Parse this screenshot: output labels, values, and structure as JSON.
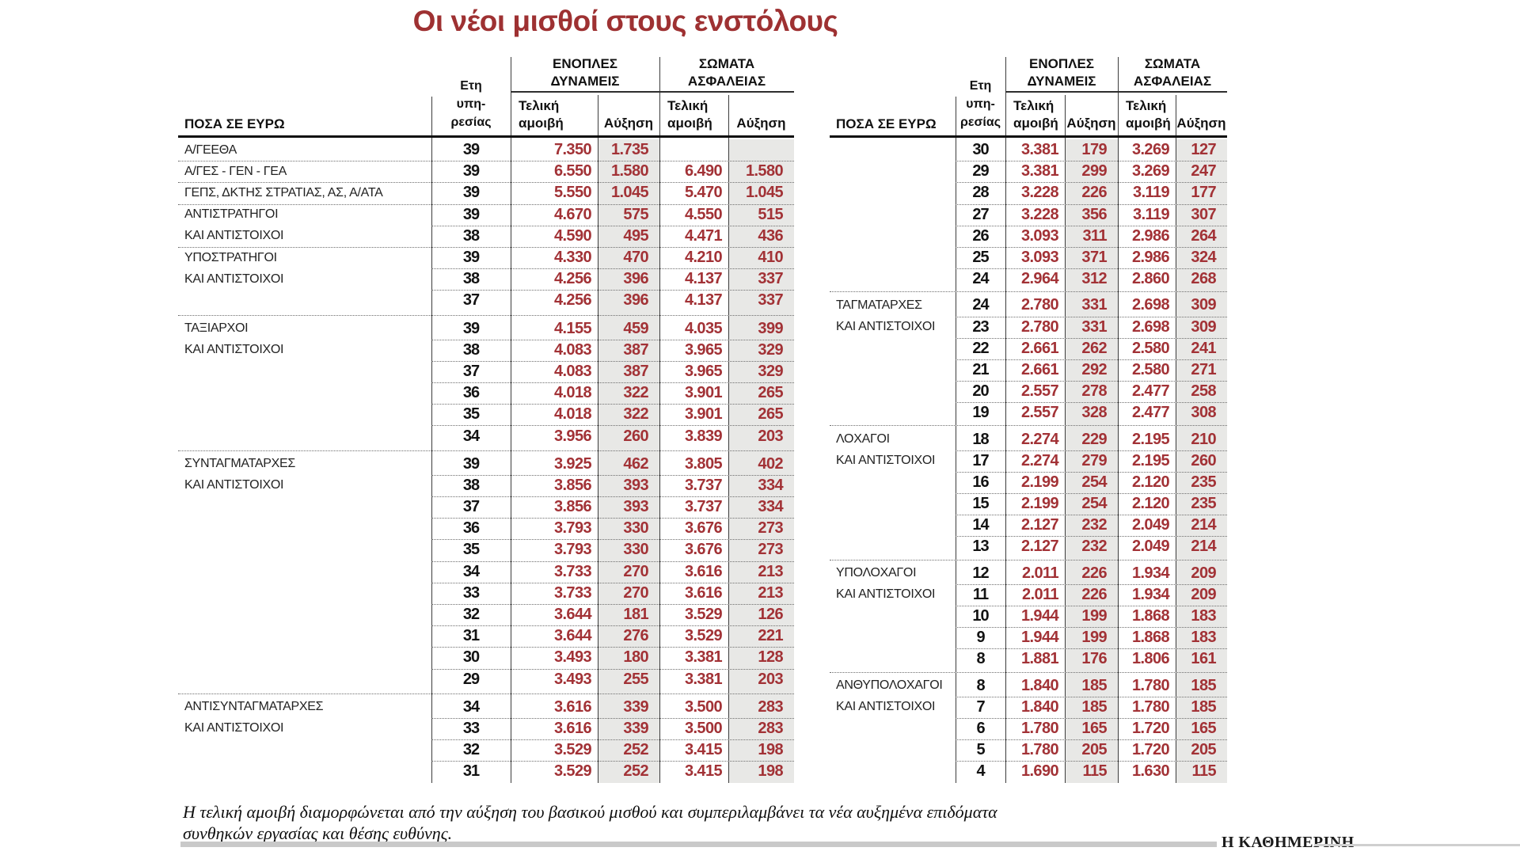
{
  "colors": {
    "accent": "#9e3132",
    "number": "#a23236",
    "shade": "#e8e8e6"
  },
  "headers": {
    "amounts": "ΠΟΣΑ ΣΕ ΕΥΡΩ",
    "years1": "Ετη",
    "years2": "υπη-",
    "years3": "ρεσίας",
    "group1a": "ΕΝΟΠΛΕΣ",
    "group1b": "ΔΥΝΑΜΕΙΣ",
    "group2a": "ΣΩΜΑΤΑ",
    "group2b": "ΑΣΦΑΛΕΙΑΣ",
    "pay1": "Τελική",
    "pay2": "αμοιβή",
    "increase": "Αύξηση"
  },
  "footnote": {
    "line1": "Η τελική αμοιβή διαμορφώνεται από την αύξηση του βασικού μισθού και συμπεριλαμβάνει τα νέα αυξημένα επιδόματα",
    "line2": "συνθηκών εργασίας και θέσης ευθύνης."
  },
  "source": "Η ΚΑΘΗΜΕΡΙΝΗ",
  "chart_data": {
    "type": "table",
    "title": "Οι νέοι μισθοί στους ενστόλους",
    "column_groups": [
      "ΕΝΟΠΛΕΣ ΔΥΝΑΜΕΙΣ",
      "ΣΩΜΑΤΑ ΑΣΦΑΛΕΙΑΣ"
    ],
    "columns": [
      "ΠΟΣΑ ΣΕ ΕΥΡΩ",
      "Ετη υπηρεσίας",
      "Τελική αμοιβή",
      "Αύξηση",
      "Τελική αμοιβή",
      "Αύξηση"
    ],
    "tables": [
      {
        "rows": [
          {
            "label": "Α/ΓΕΕΘΑ",
            "years": "39",
            "ed_pay": "7.350",
            "ed_inc": "1.735",
            "sa_pay": "",
            "sa_inc": "",
            "sep": "none"
          },
          {
            "label": "Α/ΓΕΣ - ΓΕΝ - ΓΕΑ",
            "years": "39",
            "ed_pay": "6.550",
            "ed_inc": "1.580",
            "sa_pay": "6.490",
            "sa_inc": "1.580",
            "sep": "full"
          },
          {
            "label": "ΓΕΠΣ, ΔΚΤΗΣ ΣΤΡΑΤΙΑΣ, ΑΣ, Α/ΑΤΑ",
            "years": "39",
            "ed_pay": "5.550",
            "ed_inc": "1.045",
            "sa_pay": "5.470",
            "sa_inc": "1.045",
            "sep": "full"
          },
          {
            "label": "ΑΝΤΙΣΤΡΑΤΗΓΟΙ",
            "years": "39",
            "ed_pay": "4.670",
            "ed_inc": "575",
            "sa_pay": "4.550",
            "sa_inc": "515",
            "sep": "full"
          },
          {
            "label": "ΚΑΙ ΑΝΤΙΣΤΟΙΧΟΙ",
            "years": "38",
            "ed_pay": "4.590",
            "ed_inc": "495",
            "sa_pay": "4.471",
            "sa_inc": "436",
            "sep": "row"
          },
          {
            "label": "ΥΠΟΣΤΡΑΤΗΓΟΙ",
            "years": "39",
            "ed_pay": "4.330",
            "ed_inc": "470",
            "sa_pay": "4.210",
            "sa_inc": "410",
            "sep": "full"
          },
          {
            "label": "ΚΑΙ ΑΝΤΙΣΤΟΙΧΟΙ",
            "years": "38",
            "ed_pay": "4.256",
            "ed_inc": "396",
            "sa_pay": "4.137",
            "sa_inc": "337",
            "sep": "row"
          },
          {
            "label": "",
            "years": "37",
            "ed_pay": "4.256",
            "ed_inc": "396",
            "sa_pay": "4.137",
            "sa_inc": "337",
            "sep": "row"
          },
          {
            "label": "ΤΑΞΙΑΡΧΟΙ",
            "years": "39",
            "ed_pay": "4.155",
            "ed_inc": "459",
            "sa_pay": "4.035",
            "sa_inc": "399",
            "sep": "gap"
          },
          {
            "label": "ΚΑΙ ΑΝΤΙΣΤΟΙΧΟΙ",
            "years": "38",
            "ed_pay": "4.083",
            "ed_inc": "387",
            "sa_pay": "3.965",
            "sa_inc": "329",
            "sep": "row"
          },
          {
            "label": "",
            "years": "37",
            "ed_pay": "4.083",
            "ed_inc": "387",
            "sa_pay": "3.965",
            "sa_inc": "329",
            "sep": "row"
          },
          {
            "label": "",
            "years": "36",
            "ed_pay": "4.018",
            "ed_inc": "322",
            "sa_pay": "3.901",
            "sa_inc": "265",
            "sep": "row"
          },
          {
            "label": "",
            "years": "35",
            "ed_pay": "4.018",
            "ed_inc": "322",
            "sa_pay": "3.901",
            "sa_inc": "265",
            "sep": "row"
          },
          {
            "label": "",
            "years": "34",
            "ed_pay": "3.956",
            "ed_inc": "260",
            "sa_pay": "3.839",
            "sa_inc": "203",
            "sep": "row"
          },
          {
            "label": "ΣΥΝΤΑΓΜΑΤΑΡΧΕΣ",
            "years": "39",
            "ed_pay": "3.925",
            "ed_inc": "462",
            "sa_pay": "3.805",
            "sa_inc": "402",
            "sep": "gap"
          },
          {
            "label": "ΚΑΙ ΑΝΤΙΣΤΟΙΧΟΙ",
            "years": "38",
            "ed_pay": "3.856",
            "ed_inc": "393",
            "sa_pay": "3.737",
            "sa_inc": "334",
            "sep": "row"
          },
          {
            "label": "",
            "years": "37",
            "ed_pay": "3.856",
            "ed_inc": "393",
            "sa_pay": "3.737",
            "sa_inc": "334",
            "sep": "row"
          },
          {
            "label": "",
            "years": "36",
            "ed_pay": "3.793",
            "ed_inc": "330",
            "sa_pay": "3.676",
            "sa_inc": "273",
            "sep": "row"
          },
          {
            "label": "",
            "years": "35",
            "ed_pay": "3.793",
            "ed_inc": "330",
            "sa_pay": "3.676",
            "sa_inc": "273",
            "sep": "row"
          },
          {
            "label": "",
            "years": "34",
            "ed_pay": "3.733",
            "ed_inc": "270",
            "sa_pay": "3.616",
            "sa_inc": "213",
            "sep": "row"
          },
          {
            "label": "",
            "years": "33",
            "ed_pay": "3.733",
            "ed_inc": "270",
            "sa_pay": "3.616",
            "sa_inc": "213",
            "sep": "row"
          },
          {
            "label": "",
            "years": "32",
            "ed_pay": "3.644",
            "ed_inc": "181",
            "sa_pay": "3.529",
            "sa_inc": "126",
            "sep": "row"
          },
          {
            "label": "",
            "years": "31",
            "ed_pay": "3.644",
            "ed_inc": "276",
            "sa_pay": "3.529",
            "sa_inc": "221",
            "sep": "row"
          },
          {
            "label": "",
            "years": "30",
            "ed_pay": "3.493",
            "ed_inc": "180",
            "sa_pay": "3.381",
            "sa_inc": "128",
            "sep": "row"
          },
          {
            "label": "",
            "years": "29",
            "ed_pay": "3.493",
            "ed_inc": "255",
            "sa_pay": "3.381",
            "sa_inc": "203",
            "sep": "row"
          },
          {
            "label": "ΑΝΤΙΣΥΝΤΑΓΜΑΤΑΡΧΕΣ",
            "years": "34",
            "ed_pay": "3.616",
            "ed_inc": "339",
            "sa_pay": "3.500",
            "sa_inc": "283",
            "sep": "gap"
          },
          {
            "label": "ΚΑΙ ΑΝΤΙΣΤΟΙΧΟΙ",
            "years": "33",
            "ed_pay": "3.616",
            "ed_inc": "339",
            "sa_pay": "3.500",
            "sa_inc": "283",
            "sep": "row"
          },
          {
            "label": "",
            "years": "32",
            "ed_pay": "3.529",
            "ed_inc": "252",
            "sa_pay": "3.415",
            "sa_inc": "198",
            "sep": "row"
          },
          {
            "label": "",
            "years": "31",
            "ed_pay": "3.529",
            "ed_inc": "252",
            "sa_pay": "3.415",
            "sa_inc": "198",
            "sep": "row"
          }
        ]
      },
      {
        "rows": [
          {
            "label": "",
            "years": "30",
            "ed_pay": "3.381",
            "ed_inc": "179",
            "sa_pay": "3.269",
            "sa_inc": "127",
            "sep": "none"
          },
          {
            "label": "",
            "years": "29",
            "ed_pay": "3.381",
            "ed_inc": "299",
            "sa_pay": "3.269",
            "sa_inc": "247",
            "sep": "row"
          },
          {
            "label": "",
            "years": "28",
            "ed_pay": "3.228",
            "ed_inc": "226",
            "sa_pay": "3.119",
            "sa_inc": "177",
            "sep": "row"
          },
          {
            "label": "",
            "years": "27",
            "ed_pay": "3.228",
            "ed_inc": "356",
            "sa_pay": "3.119",
            "sa_inc": "307",
            "sep": "row"
          },
          {
            "label": "",
            "years": "26",
            "ed_pay": "3.093",
            "ed_inc": "311",
            "sa_pay": "2.986",
            "sa_inc": "264",
            "sep": "row"
          },
          {
            "label": "",
            "years": "25",
            "ed_pay": "3.093",
            "ed_inc": "371",
            "sa_pay": "2.986",
            "sa_inc": "324",
            "sep": "row"
          },
          {
            "label": "",
            "years": "24",
            "ed_pay": "2.964",
            "ed_inc": "312",
            "sa_pay": "2.860",
            "sa_inc": "268",
            "sep": "row"
          },
          {
            "label": "ΤΑΓΜΑΤΑΡΧΕΣ",
            "years": "24",
            "ed_pay": "2.780",
            "ed_inc": "331",
            "sa_pay": "2.698",
            "sa_inc": "309",
            "sep": "gap"
          },
          {
            "label": "ΚΑΙ ΑΝΤΙΣΤΟΙΧΟΙ",
            "years": "23",
            "ed_pay": "2.780",
            "ed_inc": "331",
            "sa_pay": "2.698",
            "sa_inc": "309",
            "sep": "row"
          },
          {
            "label": "",
            "years": "22",
            "ed_pay": "2.661",
            "ed_inc": "262",
            "sa_pay": "2.580",
            "sa_inc": "241",
            "sep": "row"
          },
          {
            "label": "",
            "years": "21",
            "ed_pay": "2.661",
            "ed_inc": "292",
            "sa_pay": "2.580",
            "sa_inc": "271",
            "sep": "row"
          },
          {
            "label": "",
            "years": "20",
            "ed_pay": "2.557",
            "ed_inc": "278",
            "sa_pay": "2.477",
            "sa_inc": "258",
            "sep": "row"
          },
          {
            "label": "",
            "years": "19",
            "ed_pay": "2.557",
            "ed_inc": "328",
            "sa_pay": "2.477",
            "sa_inc": "308",
            "sep": "row"
          },
          {
            "label": "ΛΟΧΑΓΟΙ",
            "years": "18",
            "ed_pay": "2.274",
            "ed_inc": "229",
            "sa_pay": "2.195",
            "sa_inc": "210",
            "sep": "gap"
          },
          {
            "label": "ΚΑΙ ΑΝΤΙΣΤΟΙΧΟΙ",
            "years": "17",
            "ed_pay": "2.274",
            "ed_inc": "279",
            "sa_pay": "2.195",
            "sa_inc": "260",
            "sep": "row"
          },
          {
            "label": "",
            "years": "16",
            "ed_pay": "2.199",
            "ed_inc": "254",
            "sa_pay": "2.120",
            "sa_inc": "235",
            "sep": "row"
          },
          {
            "label": "",
            "years": "15",
            "ed_pay": "2.199",
            "ed_inc": "254",
            "sa_pay": "2.120",
            "sa_inc": "235",
            "sep": "row"
          },
          {
            "label": "",
            "years": "14",
            "ed_pay": "2.127",
            "ed_inc": "232",
            "sa_pay": "2.049",
            "sa_inc": "214",
            "sep": "row"
          },
          {
            "label": "",
            "years": "13",
            "ed_pay": "2.127",
            "ed_inc": "232",
            "sa_pay": "2.049",
            "sa_inc": "214",
            "sep": "row"
          },
          {
            "label": "ΥΠΟΛΟΧΑΓΟΙ",
            "years": "12",
            "ed_pay": "2.011",
            "ed_inc": "226",
            "sa_pay": "1.934",
            "sa_inc": "209",
            "sep": "gap"
          },
          {
            "label": "ΚΑΙ ΑΝΤΙΣΤΟΙΧΟΙ",
            "years": "11",
            "ed_pay": "2.011",
            "ed_inc": "226",
            "sa_pay": "1.934",
            "sa_inc": "209",
            "sep": "row"
          },
          {
            "label": "",
            "years": "10",
            "ed_pay": "1.944",
            "ed_inc": "199",
            "sa_pay": "1.868",
            "sa_inc": "183",
            "sep": "row"
          },
          {
            "label": "",
            "years": "9",
            "ed_pay": "1.944",
            "ed_inc": "199",
            "sa_pay": "1.868",
            "sa_inc": "183",
            "sep": "row"
          },
          {
            "label": "",
            "years": "8",
            "ed_pay": "1.881",
            "ed_inc": "176",
            "sa_pay": "1.806",
            "sa_inc": "161",
            "sep": "row"
          },
          {
            "label": "ΑΝΘΥΠΟΛΟΧΑΓΟΙ",
            "years": "8",
            "ed_pay": "1.840",
            "ed_inc": "185",
            "sa_pay": "1.780",
            "sa_inc": "185",
            "sep": "gap"
          },
          {
            "label": "ΚΑΙ ΑΝΤΙΣΤΟΙΧΟΙ",
            "years": "7",
            "ed_pay": "1.840",
            "ed_inc": "185",
            "sa_pay": "1.780",
            "sa_inc": "185",
            "sep": "row"
          },
          {
            "label": "",
            "years": "6",
            "ed_pay": "1.780",
            "ed_inc": "165",
            "sa_pay": "1.720",
            "sa_inc": "165",
            "sep": "row"
          },
          {
            "label": "",
            "years": "5",
            "ed_pay": "1.780",
            "ed_inc": "205",
            "sa_pay": "1.720",
            "sa_inc": "205",
            "sep": "row"
          },
          {
            "label": "",
            "years": "4",
            "ed_pay": "1.690",
            "ed_inc": "115",
            "sa_pay": "1.630",
            "sa_inc": "115",
            "sep": "row"
          }
        ]
      }
    ]
  }
}
